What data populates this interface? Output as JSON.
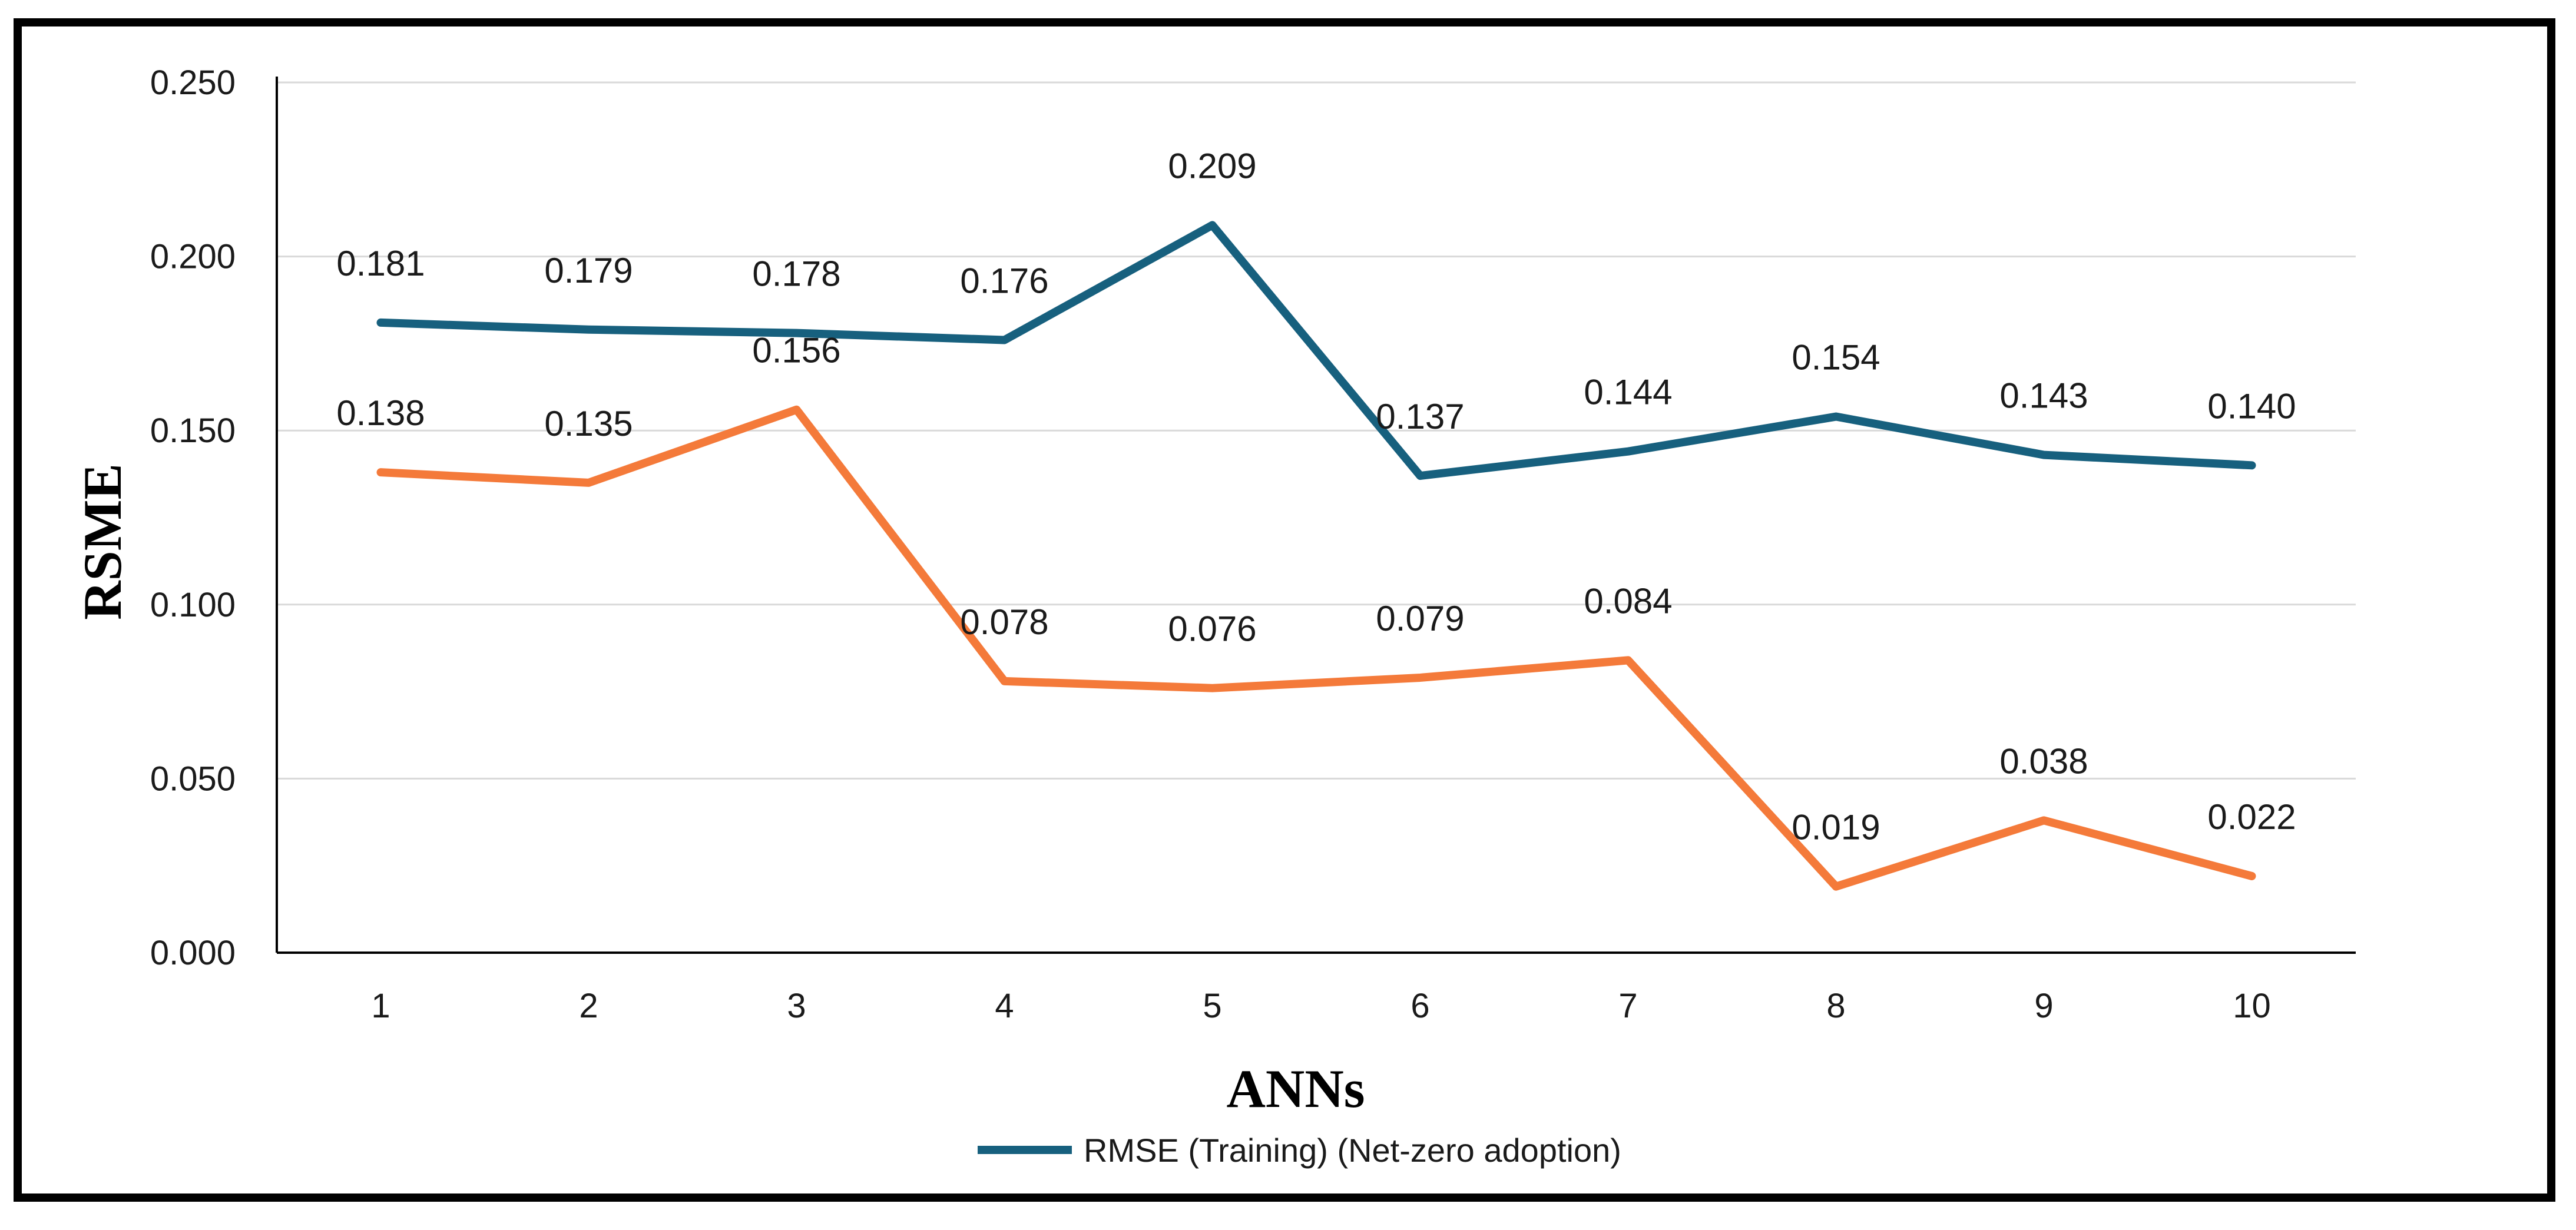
{
  "chart_data": {
    "type": "line",
    "title": "",
    "xlabel": "ANNs",
    "ylabel": "RSME",
    "categories": [
      "1",
      "2",
      "3",
      "4",
      "5",
      "6",
      "7",
      "8",
      "9",
      "10"
    ],
    "ylim": [
      0,
      0.25
    ],
    "yticks": [
      "0.000",
      "0.050",
      "0.100",
      "0.150",
      "0.200",
      "0.250"
    ],
    "grid": true,
    "legend_position": "bottom",
    "series": [
      {
        "name": "RMSE (Training) (Net-zero adoption)",
        "color": "#17607e",
        "values": [
          0.181,
          0.179,
          0.178,
          0.176,
          0.209,
          0.137,
          0.144,
          0.154,
          0.143,
          0.14
        ],
        "labels": [
          "0.181",
          "0.179",
          "0.178",
          "0.176",
          "0.209",
          "0.137",
          "0.144",
          "0.154",
          "0.143",
          "0.140"
        ]
      },
      {
        "name": "",
        "color": "#f47a3a",
        "values": [
          0.138,
          0.135,
          0.156,
          0.078,
          0.076,
          0.079,
          0.084,
          0.019,
          0.038,
          0.022
        ],
        "labels": [
          "0.138",
          "0.135",
          "0.156",
          "0.078",
          "0.076",
          "0.079",
          "0.084",
          "0.019",
          "0.038",
          "0.022"
        ]
      }
    ],
    "legend_entries": [
      "RMSE (Training) (Net-zero adoption)"
    ]
  }
}
